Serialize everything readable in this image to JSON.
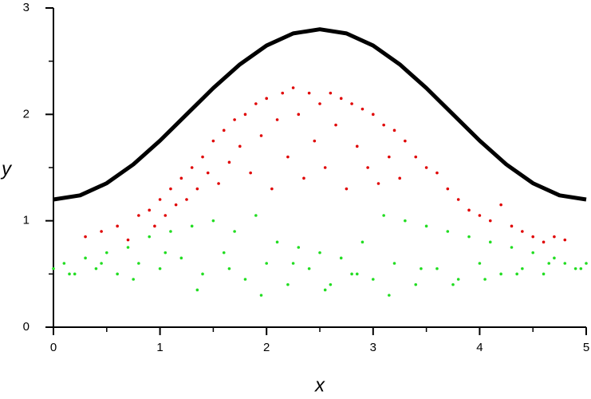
{
  "chart_data": {
    "type": "scatter",
    "x_label": "x",
    "y_label": "y",
    "xlim": [
      0,
      5
    ],
    "ylim": [
      0,
      3
    ],
    "xticks": [
      0,
      1,
      2,
      3,
      4,
      5
    ],
    "yticks": [
      0,
      1,
      2,
      3
    ],
    "xminorticks": [
      0.5,
      1.5,
      2.5,
      3.5,
      4.5
    ],
    "yminorticks": [
      0.5,
      1.5,
      2.5
    ],
    "grid": false,
    "series": [
      {
        "mode": "line",
        "color": "#000000",
        "x": [
          0,
          0.25,
          0.5,
          0.75,
          1,
          1.25,
          1.5,
          1.75,
          2,
          2.25,
          2.5,
          2.75,
          3,
          3.25,
          3.5,
          3.75,
          4,
          4.25,
          4.5,
          4.75,
          5
        ],
        "y": [
          1.2,
          1.239,
          1.353,
          1.53,
          1.753,
          2,
          2.247,
          2.47,
          2.647,
          2.761,
          2.8,
          2.761,
          2.647,
          2.47,
          2.247,
          2,
          1.753,
          1.53,
          1.353,
          1.239,
          1.2
        ]
      },
      {
        "mode": "markers",
        "color": "#e00000",
        "x": [
          0.3,
          0.45,
          0.6,
          0.7,
          0.8,
          0.9,
          0.95,
          1.0,
          1.05,
          1.1,
          1.15,
          1.2,
          1.25,
          1.3,
          1.35,
          1.4,
          1.45,
          1.5,
          1.55,
          1.6,
          1.65,
          1.7,
          1.75,
          1.8,
          1.85,
          1.9,
          1.95,
          2.0,
          2.05,
          2.1,
          2.15,
          2.2,
          2.25,
          2.3,
          2.35,
          2.4,
          2.45,
          2.5,
          2.55,
          2.6,
          2.65,
          2.7,
          2.75,
          2.8,
          2.85,
          2.9,
          2.95,
          3.0,
          3.05,
          3.1,
          3.15,
          3.2,
          3.25,
          3.3,
          3.4,
          3.5,
          3.6,
          3.7,
          3.8,
          3.9,
          4.0,
          4.1,
          4.2,
          4.3,
          4.4,
          4.5,
          4.6,
          4.7,
          4.8
        ],
        "y": [
          0.85,
          0.9,
          0.95,
          0.82,
          1.05,
          1.1,
          0.95,
          1.2,
          1.05,
          1.3,
          1.15,
          1.4,
          1.2,
          1.5,
          1.3,
          1.6,
          1.45,
          1.75,
          1.35,
          1.85,
          1.55,
          1.95,
          1.7,
          2.0,
          1.45,
          2.1,
          1.8,
          2.15,
          1.3,
          1.95,
          2.2,
          1.6,
          2.25,
          2.0,
          1.4,
          2.2,
          1.75,
          2.1,
          1.5,
          2.2,
          1.9,
          2.15,
          1.3,
          2.1,
          1.7,
          2.05,
          1.5,
          2.0,
          1.35,
          1.9,
          1.6,
          1.85,
          1.4,
          1.75,
          1.6,
          1.5,
          1.45,
          1.3,
          1.2,
          1.1,
          1.05,
          1.0,
          1.15,
          0.95,
          0.9,
          0.85,
          0.8,
          0.85,
          0.82
        ]
      },
      {
        "mode": "markers",
        "color": "#22dd22",
        "x": [
          0,
          0.1,
          0.2,
          0.3,
          0.4,
          0.5,
          0.6,
          0.7,
          0.8,
          0.9,
          1.0,
          1.1,
          1.2,
          1.3,
          1.4,
          1.5,
          1.6,
          1.7,
          1.8,
          1.9,
          2.0,
          2.1,
          2.2,
          2.3,
          2.4,
          2.5,
          2.6,
          2.7,
          2.8,
          2.9,
          3.0,
          3.1,
          3.2,
          3.3,
          3.4,
          3.5,
          3.6,
          3.7,
          3.8,
          3.9,
          4.0,
          4.1,
          4.2,
          4.3,
          4.4,
          4.5,
          4.6,
          4.7,
          4.8,
          4.9,
          5.0,
          0.15,
          0.45,
          0.75,
          1.05,
          1.35,
          1.65,
          1.95,
          2.25,
          2.55,
          2.85,
          3.15,
          3.45,
          3.75,
          4.05,
          4.35,
          4.65,
          4.95
        ],
        "y": [
          0.55,
          0.6,
          0.5,
          0.65,
          0.55,
          0.7,
          0.5,
          0.75,
          0.6,
          0.85,
          0.55,
          0.9,
          0.65,
          0.95,
          0.5,
          1.0,
          0.7,
          0.9,
          0.45,
          1.05,
          0.6,
          0.8,
          0.4,
          0.75,
          0.55,
          0.7,
          0.4,
          0.65,
          0.5,
          0.8,
          0.45,
          1.05,
          0.6,
          1.0,
          0.4,
          0.95,
          0.55,
          0.9,
          0.45,
          0.85,
          0.6,
          0.8,
          0.5,
          0.75,
          0.55,
          0.7,
          0.5,
          0.65,
          0.6,
          0.55,
          0.6,
          0.5,
          0.6,
          0.45,
          0.7,
          0.35,
          0.55,
          0.3,
          0.6,
          0.35,
          0.5,
          0.3,
          0.55,
          0.4,
          0.45,
          0.5,
          0.6,
          0.55
        ]
      }
    ]
  }
}
